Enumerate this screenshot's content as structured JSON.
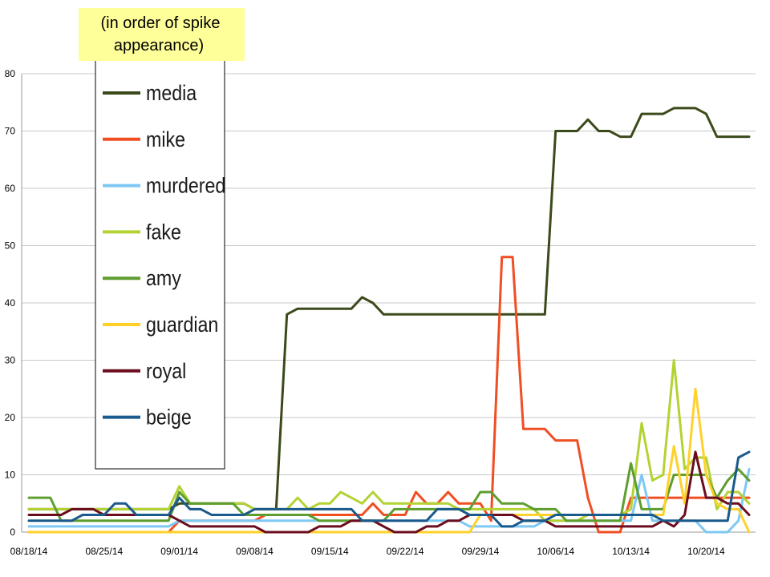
{
  "note": {
    "line1": "(in order of spike",
    "line2": "appearance)",
    "bg_color": "#ffff99"
  },
  "chart_data": {
    "type": "line",
    "title": "",
    "xlabel": "",
    "ylabel": "",
    "ylim": [
      0,
      80
    ],
    "yticks": [
      0,
      10,
      20,
      30,
      40,
      50,
      60,
      70,
      80
    ],
    "grid": true,
    "legend_position": "left",
    "x_tick_labels": [
      "08/18/14",
      "08/25/14",
      "09/01/14",
      "09/08/14",
      "09/15/14",
      "09/22/14",
      "09/29/14",
      "10/06/14",
      "10/13/14",
      "10/20/14"
    ],
    "x": [
      "08/18/14",
      "08/19/14",
      "08/20/14",
      "08/21/14",
      "08/22/14",
      "08/23/14",
      "08/24/14",
      "08/25/14",
      "08/26/14",
      "08/27/14",
      "08/28/14",
      "08/29/14",
      "08/30/14",
      "08/31/14",
      "09/01/14",
      "09/02/14",
      "09/03/14",
      "09/04/14",
      "09/05/14",
      "09/06/14",
      "09/07/14",
      "09/08/14",
      "09/09/14",
      "09/10/14",
      "09/11/14",
      "09/12/14",
      "09/13/14",
      "09/14/14",
      "09/15/14",
      "09/16/14",
      "09/17/14",
      "09/18/14",
      "09/19/14",
      "09/20/14",
      "09/21/14",
      "09/22/14",
      "09/23/14",
      "09/24/14",
      "09/25/14",
      "09/26/14",
      "09/27/14",
      "09/28/14",
      "09/29/14",
      "09/30/14",
      "10/01/14",
      "10/02/14",
      "10/03/14",
      "10/04/14",
      "10/05/14",
      "10/06/14",
      "10/07/14",
      "10/08/14",
      "10/09/14",
      "10/10/14",
      "10/11/14",
      "10/12/14",
      "10/13/14",
      "10/14/14",
      "10/15/14",
      "10/16/14",
      "10/17/14",
      "10/18/14",
      "10/19/14",
      "10/20/14",
      "10/21/14",
      "10/22/14",
      "10/23/14",
      "10/24/14"
    ],
    "series": [
      {
        "name": "media",
        "color": "#3b4a1a",
        "values": [
          4,
          4,
          4,
          4,
          4,
          4,
          4,
          4,
          4,
          4,
          4,
          4,
          4,
          4,
          5,
          5,
          5,
          5,
          5,
          5,
          5,
          4,
          4,
          4,
          38,
          39,
          39,
          39,
          39,
          39,
          39,
          41,
          40,
          38,
          38,
          38,
          38,
          38,
          38,
          38,
          38,
          38,
          38,
          38,
          38,
          38,
          38,
          38,
          38,
          70,
          70,
          70,
          72,
          70,
          70,
          69,
          69,
          73,
          73,
          73,
          74,
          74,
          74,
          73,
          69,
          69,
          69,
          69
        ]
      },
      {
        "name": "mike",
        "color": "#f04e23",
        "values": [
          0,
          0,
          0,
          0,
          0,
          0,
          0,
          0,
          0,
          0,
          0,
          0,
          0,
          0,
          2,
          2,
          2,
          2,
          2,
          2,
          2,
          2,
          3,
          3,
          3,
          3,
          3,
          3,
          3,
          3,
          3,
          3,
          5,
          3,
          3,
          3,
          7,
          5,
          5,
          7,
          5,
          5,
          5,
          2,
          48,
          48,
          18,
          18,
          18,
          16,
          16,
          16,
          6,
          0,
          0,
          0,
          6,
          6,
          6,
          6,
          6,
          6,
          6,
          6,
          6,
          6,
          6,
          6
        ]
      },
      {
        "name": "murdered",
        "color": "#7ec8f4",
        "values": [
          1,
          1,
          1,
          1,
          1,
          1,
          1,
          1,
          1,
          1,
          1,
          1,
          1,
          1,
          2,
          2,
          2,
          2,
          2,
          2,
          2,
          2,
          2,
          2,
          2,
          2,
          2,
          2,
          2,
          2,
          2,
          2,
          2,
          2,
          2,
          2,
          2,
          2,
          2,
          2,
          2,
          1,
          1,
          1,
          1,
          1,
          1,
          1,
          2,
          2,
          2,
          2,
          2,
          2,
          2,
          2,
          2,
          10,
          2,
          2,
          2,
          2,
          2,
          0,
          0,
          0,
          2,
          11
        ]
      },
      {
        "name": "fake",
        "color": "#b3d334",
        "values": [
          4,
          4,
          4,
          4,
          4,
          4,
          4,
          4,
          4,
          4,
          4,
          4,
          4,
          4,
          8,
          5,
          5,
          5,
          5,
          5,
          5,
          4,
          4,
          4,
          4,
          6,
          4,
          5,
          5,
          7,
          6,
          5,
          7,
          5,
          5,
          5,
          5,
          5,
          5,
          5,
          4,
          4,
          4,
          4,
          4,
          4,
          4,
          4,
          2,
          2,
          2,
          2,
          3,
          3,
          3,
          3,
          4,
          19,
          9,
          10,
          30,
          11,
          13,
          13,
          4,
          7,
          7,
          5
        ]
      },
      {
        "name": "amy",
        "color": "#5e9e2f",
        "values": [
          6,
          6,
          6,
          2,
          2,
          2,
          2,
          2,
          2,
          2,
          2,
          2,
          2,
          2,
          7,
          5,
          5,
          5,
          5,
          5,
          3,
          3,
          3,
          3,
          3,
          3,
          3,
          2,
          2,
          2,
          2,
          2,
          2,
          2,
          4,
          4,
          4,
          4,
          4,
          4,
          4,
          4,
          7,
          7,
          5,
          5,
          5,
          4,
          4,
          4,
          2,
          2,
          2,
          2,
          2,
          2,
          12,
          4,
          4,
          4,
          10,
          10,
          10,
          10,
          6,
          9,
          11,
          9
        ]
      },
      {
        "name": "guardian",
        "color": "#ffd12a",
        "values": [
          0,
          0,
          0,
          0,
          0,
          0,
          0,
          0,
          0,
          0,
          0,
          0,
          0,
          0,
          0,
          0,
          0,
          0,
          0,
          0,
          0,
          0,
          0,
          0,
          0,
          0,
          0,
          0,
          0,
          0,
          0,
          0,
          0,
          0,
          0,
          0,
          0,
          0,
          0,
          0,
          0,
          0,
          3,
          3,
          3,
          3,
          3,
          3,
          3,
          3,
          3,
          3,
          3,
          3,
          3,
          3,
          3,
          3,
          3,
          3,
          15,
          5,
          25,
          10,
          5,
          4,
          4,
          0
        ]
      },
      {
        "name": "royal",
        "color": "#6b0d1e",
        "values": [
          3,
          3,
          3,
          3,
          4,
          4,
          4,
          3,
          3,
          3,
          3,
          3,
          3,
          3,
          2,
          1,
          1,
          1,
          1,
          1,
          1,
          1,
          0,
          0,
          0,
          0,
          0,
          1,
          1,
          1,
          2,
          2,
          2,
          1,
          0,
          0,
          0,
          1,
          1,
          2,
          2,
          3,
          3,
          3,
          3,
          3,
          2,
          2,
          2,
          1,
          1,
          1,
          1,
          1,
          1,
          1,
          1,
          1,
          1,
          2,
          1,
          3,
          14,
          6,
          6,
          5,
          5,
          3
        ]
      },
      {
        "name": "beige",
        "color": "#1a5a8c",
        "values": [
          2,
          2,
          2,
          2,
          2,
          3,
          3,
          3,
          5,
          5,
          3,
          3,
          3,
          3,
          6,
          4,
          4,
          3,
          3,
          3,
          3,
          4,
          4,
          4,
          4,
          4,
          4,
          4,
          4,
          4,
          4,
          2,
          2,
          2,
          2,
          2,
          2,
          2,
          4,
          4,
          4,
          3,
          3,
          3,
          1,
          1,
          2,
          2,
          2,
          3,
          3,
          3,
          3,
          3,
          3,
          3,
          3,
          3,
          3,
          2,
          2,
          2,
          2,
          2,
          2,
          2,
          13,
          14
        ]
      }
    ]
  }
}
